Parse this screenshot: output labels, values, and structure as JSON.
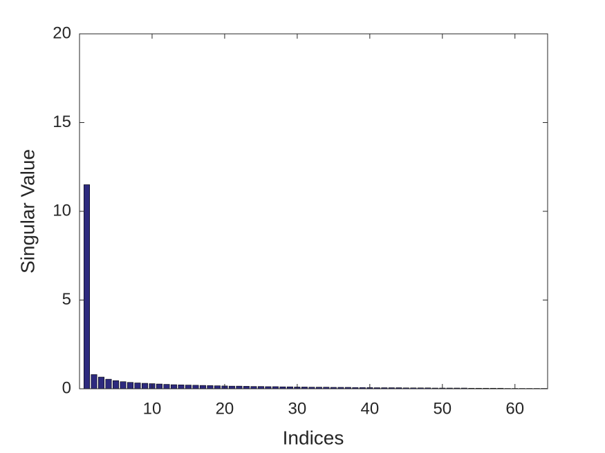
{
  "chart_data": {
    "type": "bar",
    "xlabel": "Indices",
    "ylabel": "Singular Value",
    "x": [
      1,
      2,
      3,
      4,
      5,
      6,
      7,
      8,
      9,
      10,
      11,
      12,
      13,
      14,
      15,
      16,
      17,
      18,
      19,
      20,
      21,
      22,
      23,
      24,
      25,
      26,
      27,
      28,
      29,
      30,
      31,
      32,
      33,
      34,
      35,
      36,
      37,
      38,
      39,
      40,
      41,
      42,
      43,
      44,
      45,
      46,
      47,
      48,
      49,
      50,
      51,
      52,
      53,
      54,
      55,
      56,
      57,
      58,
      59,
      60,
      61,
      62,
      63,
      64
    ],
    "values": [
      11.5,
      0.8,
      0.66,
      0.54,
      0.46,
      0.4,
      0.36,
      0.33,
      0.31,
      0.29,
      0.27,
      0.25,
      0.23,
      0.22,
      0.21,
      0.2,
      0.19,
      0.18,
      0.17,
      0.16,
      0.15,
      0.15,
      0.14,
      0.13,
      0.13,
      0.12,
      0.12,
      0.11,
      0.11,
      0.1,
      0.1,
      0.09,
      0.09,
      0.09,
      0.08,
      0.08,
      0.08,
      0.07,
      0.07,
      0.07,
      0.06,
      0.06,
      0.06,
      0.06,
      0.05,
      0.05,
      0.05,
      0.05,
      0.04,
      0.04,
      0.04,
      0.04,
      0.04,
      0.03,
      0.03,
      0.03,
      0.03,
      0.03,
      0.02,
      0.02,
      0.02,
      0.02,
      0.02,
      0.02
    ],
    "color": "#2d2a7e",
    "xlim": [
      0,
      64.5
    ],
    "xticks": [
      10,
      20,
      30,
      40,
      50,
      60
    ],
    "ylim": [
      0,
      20
    ],
    "yticks": [
      0,
      5,
      10,
      15,
      20
    ],
    "grid": false
  }
}
